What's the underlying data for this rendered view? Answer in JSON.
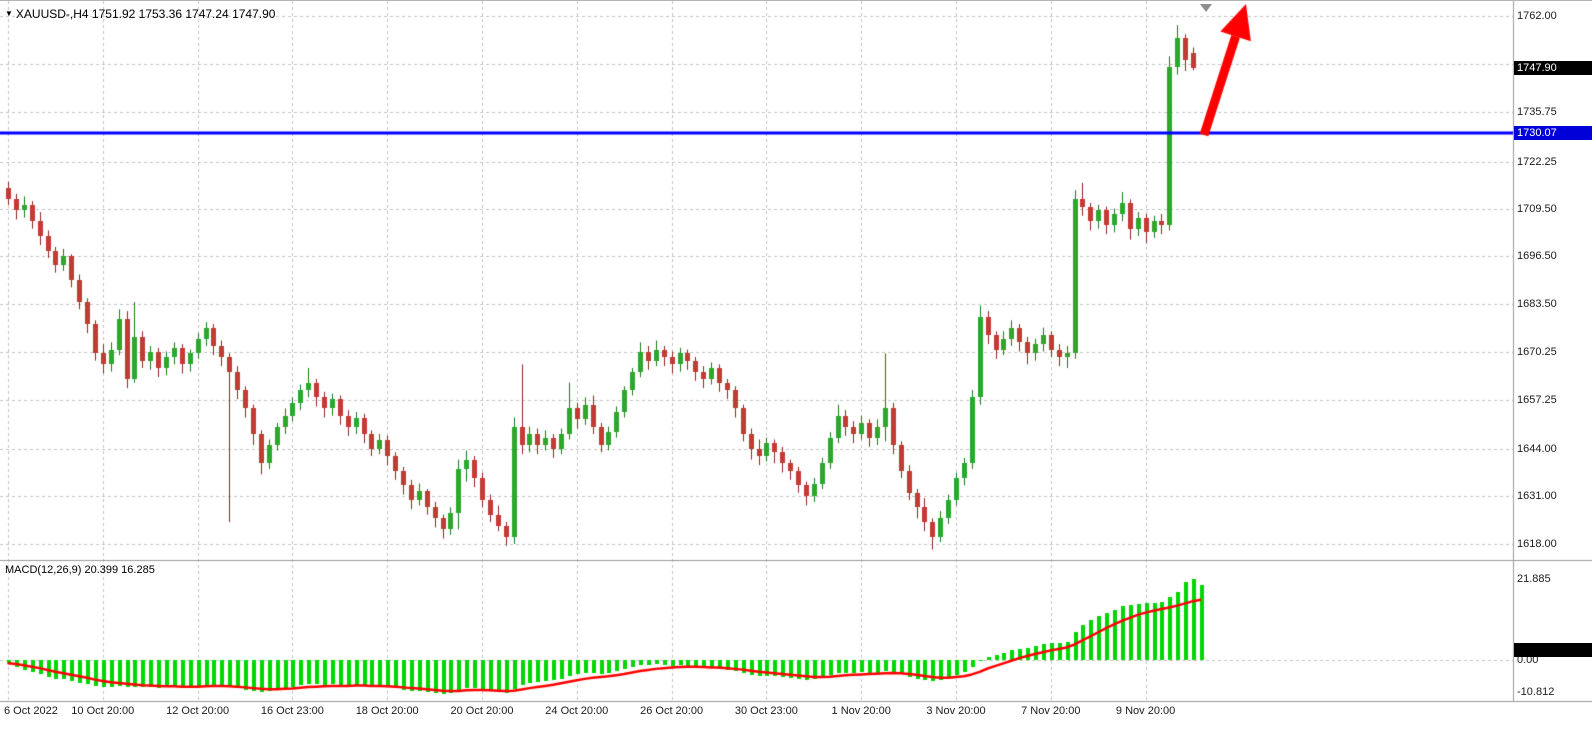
{
  "header": {
    "symbol": "XAUUSD-",
    "timeframe": "H4",
    "open": "1751.92",
    "high": "1753.36",
    "low": "1747.24",
    "close": "1747.90",
    "symbol_info": "XAUUSD-,H4 1751.92 1753.36 1747.24 1747.90"
  },
  "price_axis": {
    "labels": [
      "1762.00",
      "1735.75",
      "1722.25",
      "1709.50",
      "1696.50",
      "1683.50",
      "1670.25",
      "1657.25",
      "1644.00",
      "1631.00",
      "1618.00"
    ],
    "current_price": "1747.90",
    "line_price": "1730.07"
  },
  "macd_panel": {
    "label": "MACD(12,26,9) 20.399 16.285",
    "axis_labels": [
      "21.885",
      "0.00",
      "-10.812"
    ]
  },
  "colors": {
    "background": "#ffffff",
    "grid": "#c4c4c4",
    "bull": "#2da82d",
    "bull_border": "#1a7a1a",
    "bear": "#c23b34",
    "bear_border": "#8f2620",
    "macd_histogram": "#00d700",
    "macd_signal": "#ff0000",
    "hline": "#0000ff",
    "hline_badge": "#0000d8",
    "price_badge": "#000000",
    "arrow": "#ff0000",
    "axis_text": "#1b1b1b",
    "separator": "#9a9a9a"
  },
  "chart_data": {
    "type": "candlestick",
    "symbol": "XAUUSD",
    "timeframe": "H4",
    "ohlc_display": {
      "open": 1751.92,
      "high": 1753.36,
      "low": 1747.24,
      "close": 1747.9
    },
    "price_axis_range": [
      1618.0,
      1762.0
    ],
    "price_gridlines": [
      1762.0,
      1748.9,
      1735.75,
      1722.25,
      1709.5,
      1696.5,
      1683.5,
      1670.25,
      1657.25,
      1644.0,
      1631.0,
      1618.0
    ],
    "hline": 1730.07,
    "time_ticks": [
      {
        "label": "6 Oct 2022",
        "candle_index": 0
      },
      {
        "label": "10 Oct 20:00",
        "candle_index": 12
      },
      {
        "label": "12 Oct 20:00",
        "candle_index": 24
      },
      {
        "label": "16 Oct 23:00",
        "candle_index": 36
      },
      {
        "label": "18 Oct 20:00",
        "candle_index": 48
      },
      {
        "label": "20 Oct 20:00",
        "candle_index": 60
      },
      {
        "label": "24 Oct 20:00",
        "candle_index": 72
      },
      {
        "label": "26 Oct 20:00",
        "candle_index": 84
      },
      {
        "label": "30 Oct 23:00",
        "candle_index": 96
      },
      {
        "label": "1 Nov 20:00",
        "candle_index": 108
      },
      {
        "label": "3 Nov 20:00",
        "candle_index": 120
      },
      {
        "label": "7 Nov 20:00",
        "candle_index": 132
      },
      {
        "label": "9 Nov 20:00",
        "candle_index": 144
      }
    ],
    "candles": [
      [
        1715.0,
        1716.8,
        1710.5,
        1712.0
      ],
      [
        1712.0,
        1713.5,
        1706.5,
        1709.0
      ],
      [
        1709.0,
        1712.8,
        1707.0,
        1710.5
      ],
      [
        1710.5,
        1711.5,
        1704.0,
        1706.0
      ],
      [
        1706.0,
        1708.5,
        1699.5,
        1702.0
      ],
      [
        1702.0,
        1703.5,
        1696.0,
        1698.0
      ],
      [
        1698.0,
        1699.0,
        1692.0,
        1694.0
      ],
      [
        1694.0,
        1698.5,
        1692.5,
        1696.5
      ],
      [
        1696.5,
        1697.0,
        1688.0,
        1690.0
      ],
      [
        1690.0,
        1691.5,
        1682.0,
        1684.0
      ],
      [
        1684.0,
        1685.0,
        1675.5,
        1678.0
      ],
      [
        1678.0,
        1679.0,
        1668.0,
        1670.0
      ],
      [
        1670.0,
        1672.5,
        1664.5,
        1667.0
      ],
      [
        1667.0,
        1673.0,
        1665.0,
        1671.0
      ],
      [
        1671.0,
        1682.0,
        1669.5,
        1679.5
      ],
      [
        1679.5,
        1681.5,
        1660.5,
        1663.0
      ],
      [
        1663.0,
        1684.0,
        1662.0,
        1674.5
      ],
      [
        1674.5,
        1676.0,
        1666.0,
        1668.0
      ],
      [
        1668.0,
        1672.0,
        1665.5,
        1670.5
      ],
      [
        1670.5,
        1671.5,
        1663.5,
        1666.0
      ],
      [
        1666.0,
        1670.5,
        1664.0,
        1669.0
      ],
      [
        1669.0,
        1673.0,
        1667.0,
        1671.5
      ],
      [
        1671.5,
        1672.5,
        1664.5,
        1667.0
      ],
      [
        1667.0,
        1671.0,
        1665.0,
        1670.0
      ],
      [
        1670.0,
        1675.5,
        1668.5,
        1674.0
      ],
      [
        1674.0,
        1678.5,
        1672.0,
        1677.0
      ],
      [
        1677.0,
        1678.0,
        1669.5,
        1672.0
      ],
      [
        1672.0,
        1673.5,
        1666.5,
        1669.0
      ],
      [
        1669.0,
        1670.0,
        1624.0,
        1665.0
      ],
      [
        1665.0,
        1666.5,
        1657.5,
        1660.0
      ],
      [
        1660.0,
        1661.0,
        1652.5,
        1655.0
      ],
      [
        1655.0,
        1656.0,
        1645.0,
        1648.0
      ],
      [
        1648.0,
        1649.0,
        1637.0,
        1640.0
      ],
      [
        1640.0,
        1646.5,
        1638.5,
        1645.0
      ],
      [
        1645.0,
        1651.0,
        1643.5,
        1650.0
      ],
      [
        1650.0,
        1655.0,
        1648.0,
        1653.0
      ],
      [
        1653.0,
        1658.0,
        1651.5,
        1656.5
      ],
      [
        1656.5,
        1661.5,
        1654.5,
        1660.0
      ],
      [
        1660.0,
        1666.0,
        1658.0,
        1662.0
      ],
      [
        1662.0,
        1663.0,
        1655.5,
        1658.0
      ],
      [
        1658.0,
        1659.5,
        1652.5,
        1655.0
      ],
      [
        1655.0,
        1659.0,
        1653.0,
        1657.5
      ],
      [
        1657.5,
        1658.5,
        1650.5,
        1653.0
      ],
      [
        1653.0,
        1654.5,
        1647.5,
        1650.0
      ],
      [
        1650.0,
        1654.0,
        1648.0,
        1652.5
      ],
      [
        1652.5,
        1653.5,
        1645.5,
        1648.0
      ],
      [
        1648.0,
        1649.0,
        1642.0,
        1644.0
      ],
      [
        1644.0,
        1648.0,
        1642.5,
        1646.5
      ],
      [
        1646.5,
        1647.5,
        1639.5,
        1642.0
      ],
      [
        1642.0,
        1643.0,
        1635.5,
        1638.0
      ],
      [
        1638.0,
        1639.0,
        1631.5,
        1634.0
      ],
      [
        1634.0,
        1635.5,
        1627.5,
        1630.0
      ],
      [
        1630.0,
        1634.5,
        1628.5,
        1632.5
      ],
      [
        1632.5,
        1633.0,
        1626.0,
        1628.0
      ],
      [
        1628.0,
        1629.5,
        1622.5,
        1625.0
      ],
      [
        1625.0,
        1626.0,
        1619.5,
        1622.0
      ],
      [
        1622.0,
        1628.0,
        1620.5,
        1626.5
      ],
      [
        1626.5,
        1641.0,
        1622.0,
        1638.5
      ],
      [
        1638.5,
        1643.5,
        1635.0,
        1641.0
      ],
      [
        1641.0,
        1642.0,
        1633.5,
        1636.0
      ],
      [
        1636.0,
        1637.5,
        1628.0,
        1630.0
      ],
      [
        1630.0,
        1631.5,
        1624.0,
        1626.0
      ],
      [
        1626.0,
        1628.5,
        1621.5,
        1623.0
      ],
      [
        1623.0,
        1624.0,
        1617.5,
        1620.0
      ],
      [
        1620.0,
        1652.5,
        1618.0,
        1650.0
      ],
      [
        1650.0,
        1667.0,
        1642.5,
        1645.0
      ],
      [
        1645.0,
        1650.0,
        1643.0,
        1648.0
      ],
      [
        1648.0,
        1649.5,
        1642.5,
        1645.0
      ],
      [
        1645.0,
        1649.0,
        1643.5,
        1647.0
      ],
      [
        1647.0,
        1648.0,
        1641.5,
        1644.0
      ],
      [
        1644.0,
        1649.5,
        1642.5,
        1648.0
      ],
      [
        1648.0,
        1662.0,
        1646.5,
        1655.0
      ],
      [
        1655.0,
        1656.5,
        1649.5,
        1652.0
      ],
      [
        1652.0,
        1658.0,
        1650.5,
        1656.0
      ],
      [
        1656.0,
        1658.5,
        1648.0,
        1650.0
      ],
      [
        1650.0,
        1651.0,
        1643.0,
        1645.0
      ],
      [
        1645.0,
        1650.0,
        1643.5,
        1648.5
      ],
      [
        1648.5,
        1655.5,
        1647.0,
        1654.0
      ],
      [
        1654.0,
        1661.0,
        1652.5,
        1660.0
      ],
      [
        1660.0,
        1666.0,
        1658.5,
        1665.0
      ],
      [
        1665.0,
        1673.0,
        1663.5,
        1670.5
      ],
      [
        1670.5,
        1672.0,
        1665.5,
        1668.0
      ],
      [
        1668.0,
        1673.5,
        1666.5,
        1671.0
      ],
      [
        1671.0,
        1672.0,
        1666.5,
        1669.0
      ],
      [
        1669.0,
        1670.5,
        1664.5,
        1667.0
      ],
      [
        1667.0,
        1671.5,
        1665.0,
        1670.0
      ],
      [
        1670.0,
        1671.0,
        1665.5,
        1668.0
      ],
      [
        1668.0,
        1669.0,
        1662.5,
        1665.0
      ],
      [
        1665.0,
        1666.5,
        1660.5,
        1663.0
      ],
      [
        1663.0,
        1667.5,
        1661.5,
        1666.0
      ],
      [
        1666.0,
        1667.0,
        1659.5,
        1662.0
      ],
      [
        1662.0,
        1663.0,
        1657.5,
        1660.0
      ],
      [
        1660.0,
        1661.0,
        1652.5,
        1655.0
      ],
      [
        1655.0,
        1656.0,
        1646.0,
        1648.0
      ],
      [
        1648.0,
        1649.5,
        1641.0,
        1644.0
      ],
      [
        1644.0,
        1646.5,
        1639.5,
        1642.0
      ],
      [
        1642.0,
        1647.0,
        1640.5,
        1645.5
      ],
      [
        1645.5,
        1646.5,
        1640.0,
        1643.0
      ],
      [
        1643.0,
        1644.5,
        1637.5,
        1640.0
      ],
      [
        1640.0,
        1641.0,
        1635.5,
        1638.0
      ],
      [
        1638.0,
        1639.0,
        1632.0,
        1634.0
      ],
      [
        1634.0,
        1635.0,
        1628.5,
        1631.0
      ],
      [
        1631.0,
        1636.0,
        1629.5,
        1634.5
      ],
      [
        1634.5,
        1641.5,
        1633.0,
        1640.0
      ],
      [
        1640.0,
        1648.5,
        1638.5,
        1647.0
      ],
      [
        1647.0,
        1656.0,
        1645.5,
        1653.0
      ],
      [
        1653.0,
        1654.5,
        1647.5,
        1650.0
      ],
      [
        1650.0,
        1651.5,
        1645.5,
        1648.0
      ],
      [
        1648.0,
        1653.0,
        1646.5,
        1651.0
      ],
      [
        1651.0,
        1652.0,
        1644.5,
        1647.0
      ],
      [
        1647.0,
        1652.0,
        1645.0,
        1650.0
      ],
      [
        1650.0,
        1670.0,
        1646.0,
        1655.0
      ],
      [
        1655.0,
        1656.5,
        1642.5,
        1645.0
      ],
      [
        1645.0,
        1646.0,
        1636.0,
        1638.0
      ],
      [
        1638.0,
        1639.5,
        1630.0,
        1632.0
      ],
      [
        1632.0,
        1633.0,
        1625.0,
        1628.0
      ],
      [
        1628.0,
        1630.5,
        1621.5,
        1624.0
      ],
      [
        1624.0,
        1625.0,
        1616.5,
        1620.0
      ],
      [
        1620.0,
        1627.0,
        1618.5,
        1625.0
      ],
      [
        1625.0,
        1631.5,
        1623.5,
        1630.0
      ],
      [
        1630.0,
        1637.5,
        1628.5,
        1636.0
      ],
      [
        1636.0,
        1641.5,
        1634.0,
        1640.0
      ],
      [
        1640.0,
        1660.0,
        1638.5,
        1658.0
      ],
      [
        1658.0,
        1683.0,
        1656.0,
        1680.0
      ],
      [
        1680.0,
        1681.5,
        1672.5,
        1675.0
      ],
      [
        1675.0,
        1676.0,
        1668.5,
        1671.0
      ],
      [
        1671.0,
        1676.0,
        1669.5,
        1674.0
      ],
      [
        1674.0,
        1679.0,
        1672.0,
        1677.0
      ],
      [
        1677.0,
        1678.0,
        1670.5,
        1673.0
      ],
      [
        1673.0,
        1674.5,
        1667.0,
        1670.0
      ],
      [
        1670.0,
        1674.0,
        1668.0,
        1672.5
      ],
      [
        1672.5,
        1677.0,
        1670.5,
        1675.0
      ],
      [
        1675.0,
        1676.0,
        1669.0,
        1671.0
      ],
      [
        1671.0,
        1672.5,
        1666.5,
        1669.0
      ],
      [
        1669.0,
        1672.0,
        1666.0,
        1670.0
      ],
      [
        1670.0,
        1714.5,
        1668.5,
        1712.0
      ],
      [
        1712.0,
        1716.5,
        1707.5,
        1710.0
      ],
      [
        1710.0,
        1711.0,
        1703.5,
        1706.0
      ],
      [
        1706.0,
        1710.5,
        1704.0,
        1709.0
      ],
      [
        1709.0,
        1710.0,
        1702.5,
        1705.0
      ],
      [
        1705.0,
        1709.5,
        1703.0,
        1708.0
      ],
      [
        1708.0,
        1714.0,
        1706.0,
        1711.0
      ],
      [
        1711.0,
        1712.0,
        1701.0,
        1704.0
      ],
      [
        1704.0,
        1708.5,
        1702.0,
        1707.0
      ],
      [
        1707.0,
        1708.0,
        1700.0,
        1703.0
      ],
      [
        1703.0,
        1707.5,
        1701.5,
        1706.0
      ],
      [
        1706.0,
        1708.0,
        1702.5,
        1705.0
      ],
      [
        1705.0,
        1751.0,
        1703.5,
        1748.0
      ],
      [
        1748.0,
        1759.5,
        1746.0,
        1756.0
      ],
      [
        1756.0,
        1757.0,
        1747.0,
        1750.0
      ],
      [
        1751.9,
        1753.4,
        1747.2,
        1747.9
      ]
    ],
    "macd": {
      "type": "histogram+line",
      "params": "12,26,9",
      "range": [
        -10.812,
        21.885
      ],
      "current": {
        "macd": 20.399,
        "signal": 16.285
      },
      "histogram": [
        -1.2,
        -2.0,
        -2.6,
        -3.2,
        -3.9,
        -4.5,
        -5.0,
        -5.2,
        -5.6,
        -6.1,
        -6.6,
        -7.1,
        -7.3,
        -7.2,
        -6.9,
        -7.4,
        -7.2,
        -7.4,
        -7.3,
        -7.5,
        -7.4,
        -7.2,
        -7.4,
        -7.3,
        -7.0,
        -6.7,
        -6.9,
        -7.1,
        -7.4,
        -7.7,
        -8.0,
        -8.3,
        -8.6,
        -8.4,
        -8.0,
        -7.6,
        -7.2,
        -6.8,
        -6.4,
        -6.6,
        -6.8,
        -6.6,
        -6.8,
        -7.0,
        -6.8,
        -7.0,
        -7.3,
        -7.1,
        -7.4,
        -7.7,
        -8.1,
        -8.5,
        -8.3,
        -8.6,
        -8.9,
        -9.2,
        -8.9,
        -8.2,
        -7.6,
        -7.7,
        -8.0,
        -8.4,
        -8.7,
        -9.0,
        -7.8,
        -6.8,
        -6.2,
        -6.0,
        -5.6,
        -5.5,
        -5.0,
        -4.2,
        -3.9,
        -3.4,
        -3.5,
        -3.8,
        -3.6,
        -3.0,
        -2.4,
        -1.9,
        -1.4,
        -1.4,
        -1.2,
        -1.3,
        -1.5,
        -1.4,
        -1.6,
        -1.9,
        -2.2,
        -2.1,
        -2.4,
        -2.7,
        -3.1,
        -3.6,
        -4.0,
        -4.3,
        -4.2,
        -4.4,
        -4.6,
        -4.8,
        -5.1,
        -5.4,
        -5.2,
        -4.7,
        -4.1,
        -3.5,
        -3.4,
        -3.5,
        -3.3,
        -3.6,
        -3.4,
        -2.9,
        -3.3,
        -3.9,
        -4.5,
        -5.0,
        -5.4,
        -5.8,
        -5.4,
        -4.8,
        -4.0,
        -3.3,
        -2.0,
        -0.2,
        0.9,
        1.4,
        2.0,
        2.7,
        3.1,
        3.3,
        3.7,
        4.3,
        4.5,
        4.6,
        4.8,
        7.5,
        9.5,
        10.8,
        12.0,
        12.8,
        13.6,
        14.5,
        14.8,
        15.2,
        15.3,
        15.5,
        15.6,
        16.9,
        18.5,
        21.0,
        21.885,
        20.399
      ],
      "signal": [
        -0.9,
        -1.1,
        -1.4,
        -1.8,
        -2.2,
        -2.7,
        -3.2,
        -3.6,
        -4.0,
        -4.4,
        -4.8,
        -5.3,
        -5.7,
        -6.0,
        -6.2,
        -6.4,
        -6.6,
        -6.8,
        -6.9,
        -7.0,
        -7.1,
        -7.1,
        -7.2,
        -7.2,
        -7.2,
        -7.1,
        -7.0,
        -7.0,
        -7.1,
        -7.2,
        -7.4,
        -7.6,
        -7.8,
        -7.9,
        -7.9,
        -7.8,
        -7.7,
        -7.5,
        -7.3,
        -7.2,
        -7.1,
        -7.0,
        -7.0,
        -7.0,
        -6.9,
        -6.9,
        -7.0,
        -7.0,
        -7.1,
        -7.2,
        -7.4,
        -7.6,
        -7.7,
        -7.9,
        -8.1,
        -8.3,
        -8.4,
        -8.4,
        -8.2,
        -8.1,
        -8.1,
        -8.2,
        -8.3,
        -8.4,
        -8.3,
        -8.0,
        -7.6,
        -7.3,
        -7.0,
        -6.7,
        -6.3,
        -5.9,
        -5.5,
        -5.1,
        -4.8,
        -4.6,
        -4.4,
        -4.1,
        -3.8,
        -3.4,
        -3.0,
        -2.7,
        -2.4,
        -2.2,
        -2.0,
        -1.9,
        -1.8,
        -1.8,
        -1.9,
        -2.0,
        -2.0,
        -2.2,
        -2.4,
        -2.6,
        -2.9,
        -3.2,
        -3.4,
        -3.6,
        -3.8,
        -4.0,
        -4.2,
        -4.4,
        -4.6,
        -4.6,
        -4.5,
        -4.3,
        -4.1,
        -4.0,
        -3.9,
        -3.8,
        -3.7,
        -3.6,
        -3.5,
        -3.6,
        -3.8,
        -4.0,
        -4.3,
        -4.6,
        -4.8,
        -4.8,
        -4.6,
        -4.4,
        -3.9,
        -3.2,
        -2.3,
        -1.6,
        -0.9,
        -0.2,
        0.5,
        1.1,
        1.6,
        2.1,
        2.6,
        3.0,
        3.4,
        4.2,
        5.3,
        6.4,
        7.5,
        8.6,
        9.6,
        10.6,
        11.4,
        12.2,
        12.8,
        13.3,
        13.8,
        14.2,
        14.7,
        15.3,
        15.9,
        16.285
      ]
    },
    "annotations": [
      {
        "type": "arrow",
        "direction": "up",
        "color": "#ff0000",
        "tail": [
          1204,
          134
        ],
        "tip": [
          1246,
          3
        ]
      }
    ]
  }
}
